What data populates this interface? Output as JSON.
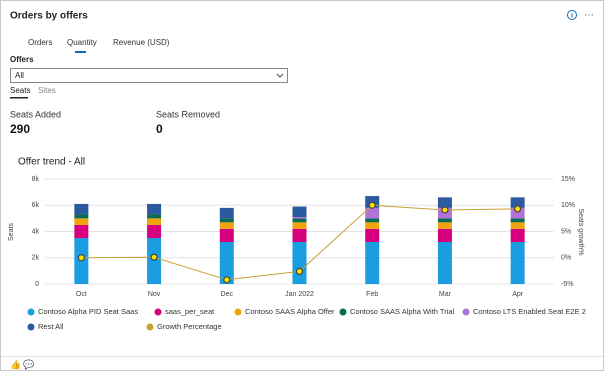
{
  "header": {
    "title": "Orders by offers"
  },
  "tabs": [
    "Orders",
    "Quantity",
    "Revenue (USD)"
  ],
  "filter": {
    "label": "Offers",
    "value": "All"
  },
  "subtabs": [
    "Seats",
    "Sites"
  ],
  "stats": [
    {
      "label": "Seats Added",
      "value": 290
    },
    {
      "label": "Seats Removed",
      "value": 0
    }
  ],
  "chart_data": {
    "type": "bar",
    "stacked": true,
    "title": "Offer trend - All",
    "y_label": "Seats",
    "y2_label": "Seats growth%",
    "categories": [
      "Oct",
      "Nov",
      "Dec",
      "Jan 2022",
      "Feb",
      "Mar",
      "Apr"
    ],
    "ylim": [
      0,
      8000
    ],
    "yticks": [
      0,
      {
        "value": 2000,
        "label": "2k"
      },
      {
        "value": 4000,
        "label": "4k"
      },
      {
        "value": 6000,
        "label": "6k"
      },
      {
        "value": 8000,
        "label": "8k"
      }
    ],
    "y2lim": [
      -5,
      15
    ],
    "y2ticks": [
      {
        "value": -5,
        "label": "-5%"
      },
      {
        "value": 0,
        "label": "0%"
      },
      {
        "value": 5,
        "label": "5%"
      },
      {
        "value": 10,
        "label": "10%"
      },
      {
        "value": 15,
        "label": "15%"
      }
    ],
    "grid": true,
    "series": [
      {
        "name": "Contoso Alpha PID Seat Saas",
        "color": "#1b9de2",
        "values": [
          3500,
          3500,
          3200,
          3200,
          3200,
          3200,
          3200
        ]
      },
      {
        "name": "saas_per_seat",
        "color": "#d6007f",
        "values": [
          1000,
          1000,
          1000,
          1000,
          1000,
          1000,
          1000
        ]
      },
      {
        "name": "Contoso SAAS Alpha Offer",
        "color": "#f0a30a",
        "values": [
          500,
          500,
          500,
          500,
          500,
          500,
          500
        ]
      },
      {
        "name": "Contoso SAAS Alpha With Trial",
        "color": "#0b6a53",
        "values": [
          300,
          300,
          300,
          300,
          300,
          300,
          300
        ]
      },
      {
        "name": "Contoso LTS Enabled Seat E2E 2",
        "color": "#b273d8",
        "values": [
          0,
          0,
          0,
          100,
          800,
          800,
          800
        ]
      },
      {
        "name": "Rest All",
        "color": "#2c5aa0",
        "values": [
          800,
          800,
          800,
          800,
          900,
          800,
          800
        ]
      },
      {
        "name": "Growth Percentage",
        "color": "#c9a033",
        "type": "line",
        "axis": "y2",
        "values": [
          0,
          0.1,
          -4.2,
          -2.6,
          10,
          9.1,
          9.3
        ]
      }
    ]
  }
}
